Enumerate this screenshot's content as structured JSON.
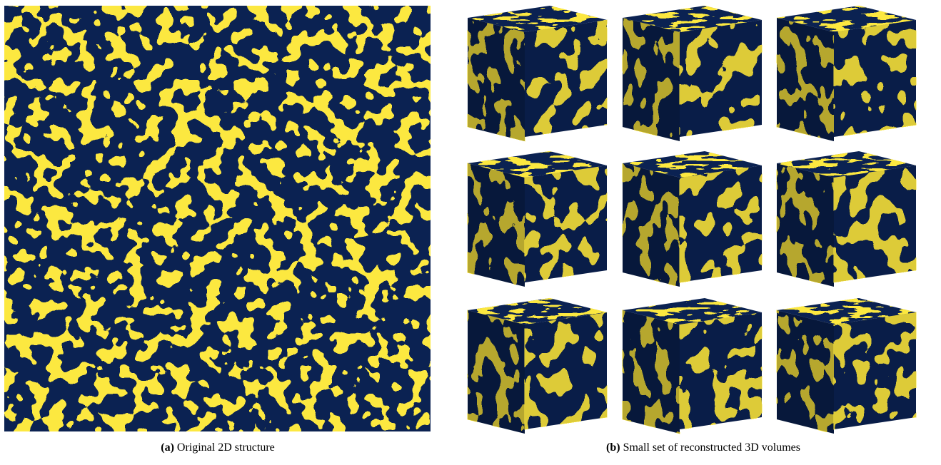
{
  "captions": [
    {
      "label": "(a)",
      "text": "Original 2D structure"
    },
    {
      "label": "(b)",
      "text": "Small set of reconstructed 3D volumes"
    }
  ]
}
